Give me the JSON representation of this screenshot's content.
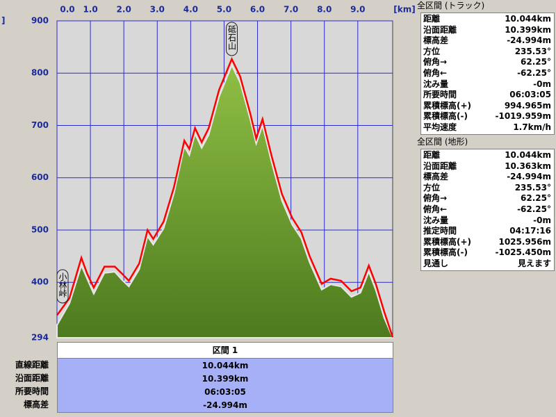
{
  "chart_data": {
    "type": "area",
    "x_unit": "[km]",
    "y_unit": "]",
    "x": [
      0,
      0.375,
      0.73,
      0.9,
      1.1,
      1.42,
      1.73,
      1.94,
      2.15,
      2.46,
      2.71,
      2.88,
      3.19,
      3.5,
      3.81,
      3.96,
      4.13,
      4.33,
      4.54,
      4.85,
      5.23,
      5.48,
      5.79,
      5.96,
      6.15,
      6.42,
      6.73,
      7.04,
      7.31,
      7.56,
      7.92,
      8.19,
      8.5,
      8.81,
      9.08,
      9.33,
      9.54,
      9.79,
      10.044
    ],
    "series": [
      {
        "color": "#6b9a2c",
        "values": [
          318,
          360,
          432,
          407,
          378,
          418,
          420,
          405,
          392,
          425,
          488,
          472,
          503,
          570,
          660,
          643,
          684,
          657,
          682,
          755,
          815,
          782,
          710,
          665,
          700,
          630,
          556,
          510,
          484,
          438,
          386,
          396,
          392,
          372,
          380,
          420,
          385,
          332,
          294
        ]
      },
      {
        "color": "#ff0000",
        "values": [
          337,
          370,
          447,
          417,
          390,
          430,
          430,
          417,
          403,
          436,
          500,
          483,
          516,
          582,
          671,
          655,
          695,
          668,
          695,
          768,
          827,
          794,
          721,
          675,
          712,
          642,
          569,
          523,
          496,
          450,
          397,
          407,
          403,
          383,
          390,
          432,
          397,
          344,
          295
        ]
      }
    ],
    "xlim": [
      0,
      10.044
    ],
    "ylim": [
      294,
      900
    ],
    "xticks": [
      {
        "value": 0,
        "label": "0.0"
      },
      {
        "value": 1,
        "label": "1.0"
      },
      {
        "value": 2,
        "label": "2.0"
      },
      {
        "value": 3,
        "label": "3.0"
      },
      {
        "value": 4,
        "label": "4.0"
      },
      {
        "value": 5,
        "label": "5.0"
      },
      {
        "value": 6,
        "label": "6.0"
      },
      {
        "value": 7,
        "label": "7.0"
      },
      {
        "value": 8,
        "label": "8.0"
      },
      {
        "value": 9,
        "label": "9.0"
      }
    ],
    "yticks": [
      294,
      400,
      500,
      600,
      700,
      800,
      900
    ],
    "grid": true,
    "annotations": [
      {
        "text": "砥石山",
        "x": 5.23
      },
      {
        "text": "小林峠",
        "x": 0
      }
    ]
  },
  "section_table": {
    "title": "区間 1",
    "rows": [
      [
        "直線距離",
        "10.044km"
      ],
      [
        "沿面距離",
        "10.399km"
      ],
      [
        "所要時間",
        "06:03:05"
      ],
      [
        "標高差",
        "-24.994m"
      ]
    ]
  },
  "track_panel": {
    "title": "全区間 (トラック)",
    "rows": [
      [
        "距離",
        "10.044km"
      ],
      [
        "沿面距離",
        "10.399km"
      ],
      [
        "標高差",
        "-24.994m"
      ],
      [
        "方位",
        "235.53°"
      ],
      [
        "俯角→",
        "62.25°"
      ],
      [
        "俯角←",
        "-62.25°"
      ],
      [
        "沈み量",
        "-0m"
      ],
      [
        "所要時間",
        "06:03:05"
      ],
      [
        "累積標高(+)",
        "994.965m"
      ],
      [
        "累積標高(-)",
        "-1019.959m"
      ],
      [
        "平均速度",
        "1.7km/h"
      ]
    ]
  },
  "terrain_panel": {
    "title": "全区間 (地形)",
    "rows": [
      [
        "距離",
        "10.044km"
      ],
      [
        "沿面距離",
        "10.363km"
      ],
      [
        "標高差",
        "-24.994m"
      ],
      [
        "方位",
        "235.53°"
      ],
      [
        "俯角→",
        "62.25°"
      ],
      [
        "俯角←",
        "-62.25°"
      ],
      [
        "沈み量",
        "-0m"
      ],
      [
        "推定時間",
        "04:17:16"
      ],
      [
        "累積標高(+)",
        "1025.956m"
      ],
      [
        "累積標高(-)",
        "-1025.450m"
      ],
      [
        "見通し",
        "見えます"
      ]
    ]
  }
}
